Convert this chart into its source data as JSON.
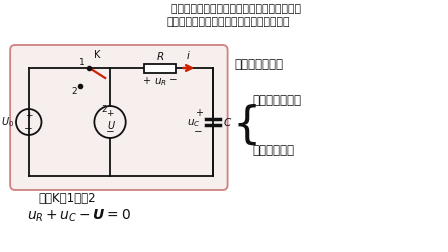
{
  "bg_color": "#ffffff",
  "title_text1": "    分析电路的暂态过程就是根据激励（电压源或",
  "title_text2": "电流源），求电路的响应（电压和电流）。",
  "right_title": "分析基本依据：",
  "right_line1": "元件的伏安关系",
  "right_line2": "基尔霍夫定律",
  "bottom_label1": "开关K从1打到2",
  "bottom_eq": "$\\boldsymbol{u_R}+\\boldsymbol{u_C}-\\boldsymbol{U}=0$",
  "box_facecolor": "#f7eeee",
  "box_edgecolor": "#d08080",
  "circuit_color": "#111111",
  "switch_color": "#cc2200",
  "arrow_color": "#cc2200",
  "text_color": "#111111"
}
